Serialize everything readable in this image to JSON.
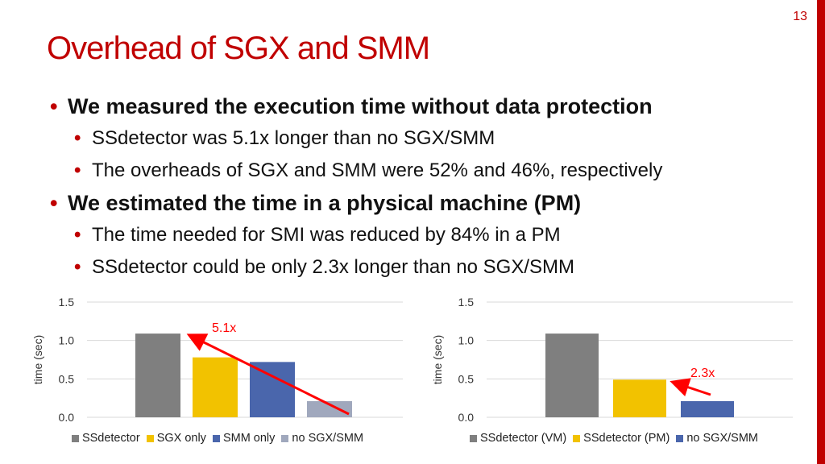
{
  "slide": {
    "number": "13",
    "title": "Overhead of SGX and SMM",
    "accent_color": "#c00000"
  },
  "bullets": [
    {
      "text": "We measured the execution time without data protection",
      "subs": [
        "SSdetector was 5.1x longer than no SGX/SMM",
        "The overheads of SGX and SMM were 52% and 46%, respectively"
      ]
    },
    {
      "text": "We estimated the time in a physical machine (PM)",
      "subs": [
        "The time needed for SMI was reduced by 84% in a PM",
        "SSdetector could be only 2.3x longer than no SGX/SMM"
      ]
    }
  ],
  "chart_data": [
    {
      "type": "bar",
      "ylabel": "time (sec)",
      "ylim": [
        0,
        1.5
      ],
      "yticks": [
        "0.0",
        "0.5",
        "1.0",
        "1.5"
      ],
      "grid": true,
      "legend_position": "bottom",
      "series": [
        {
          "name": "SSdetector",
          "value": 1.09,
          "color": "#7f7f7f"
        },
        {
          "name": "SGX only",
          "value": 0.78,
          "color": "#f2c200"
        },
        {
          "name": "SMM only",
          "value": 0.72,
          "color": "#4a66ac"
        },
        {
          "name": "no SGX/SMM",
          "value": 0.21,
          "color": "#a0a8bd"
        }
      ],
      "annotation": {
        "text": "5.1x",
        "color": "#ff0000",
        "from": "no SGX/SMM",
        "to": "SSdetector"
      }
    },
    {
      "type": "bar",
      "ylabel": "time (sec)",
      "ylim": [
        0,
        1.5
      ],
      "yticks": [
        "0.0",
        "0.5",
        "1.0",
        "1.5"
      ],
      "grid": true,
      "legend_position": "bottom",
      "series": [
        {
          "name": "SSdetector (VM)",
          "value": 1.09,
          "color": "#7f7f7f"
        },
        {
          "name": "SSdetector (PM)",
          "value": 0.49,
          "color": "#f2c200"
        },
        {
          "name": "no SGX/SMM",
          "value": 0.21,
          "color": "#4a66ac"
        }
      ],
      "annotation": {
        "text": "2.3x",
        "color": "#ff0000",
        "from": "no SGX/SMM",
        "to": "SSdetector (PM)"
      }
    }
  ]
}
